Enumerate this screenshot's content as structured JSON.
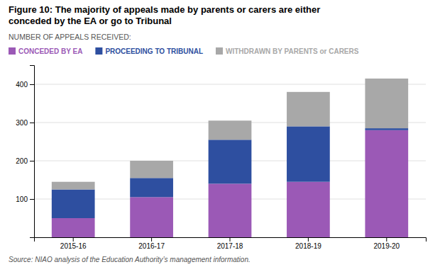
{
  "chart_data": {
    "type": "bar",
    "stacked": true,
    "title": [
      "Figure 10: The majority of appeals made by parents or carers are either",
      "conceded by the EA or go to Tribunal"
    ],
    "subtitle": "NUMBER OF APPEALS RECEIVED:",
    "source": "Source: NIAO analysis of the Education Authority’s management information.",
    "categories": [
      "2015-16",
      "2016-17",
      "2017-18",
      "2018-19",
      "2019-20"
    ],
    "series": [
      {
        "name": "CONCEDED BY EA",
        "color": "#9b59b6",
        "values": [
          50,
          105,
          140,
          145,
          280
        ]
      },
      {
        "name": "PROCEEDING TO TRIBUNAL",
        "color": "#2e4fa0",
        "values": [
          75,
          50,
          115,
          145,
          5
        ]
      },
      {
        "name": "WITHDRAWN BY PARENTS or CARERS",
        "color": "#a8a8a8",
        "values": [
          20,
          45,
          50,
          90,
          130
        ]
      }
    ],
    "ylim": [
      0,
      450
    ],
    "yticks": [
      100,
      200,
      300,
      400
    ],
    "grid": true,
    "legend": "top-left"
  }
}
